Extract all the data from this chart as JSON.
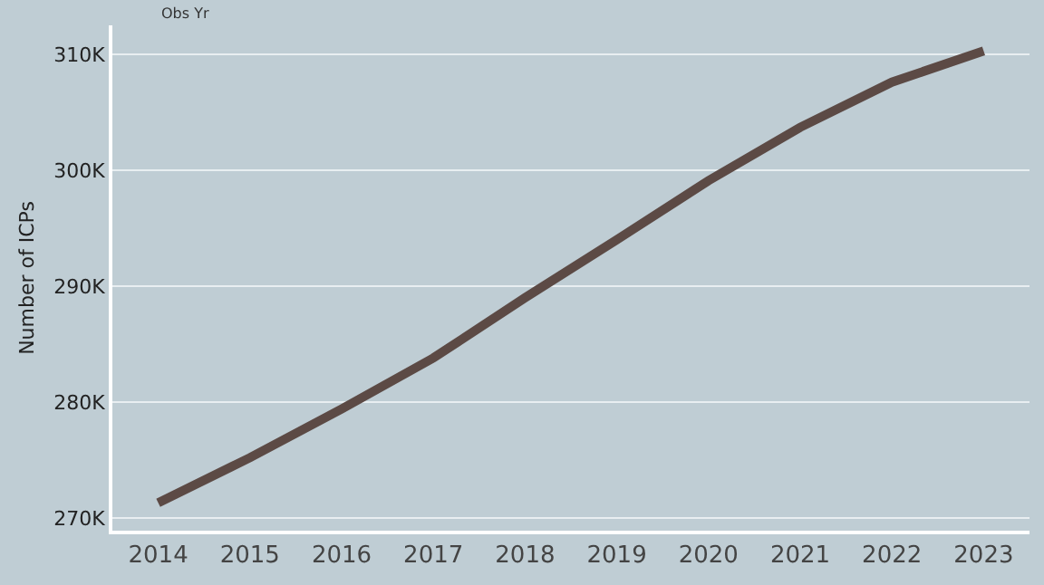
{
  "chart_data": {
    "type": "line",
    "xlabel": "Obs Yr",
    "ylabel": "Number of ICPs",
    "categories": [
      "2014",
      "2015",
      "2016",
      "2017",
      "2018",
      "2019",
      "2020",
      "2021",
      "2022",
      "2023"
    ],
    "series": [
      {
        "color": "#5c4a45",
        "values": [
          271300,
          275200,
          279400,
          283800,
          289000,
          294000,
          299100,
          303700,
          307600,
          310300
        ]
      }
    ],
    "ylim": [
      268900,
      312500
    ],
    "yticks": [
      {
        "value": 270000,
        "label": "270K"
      },
      {
        "value": 280000,
        "label": "280K"
      },
      {
        "value": 290000,
        "label": "290K"
      },
      {
        "value": 300000,
        "label": "300K"
      },
      {
        "value": 310000,
        "label": "310K"
      }
    ],
    "grid": "y",
    "marker": "none",
    "line_style": "solid",
    "legend": false
  }
}
